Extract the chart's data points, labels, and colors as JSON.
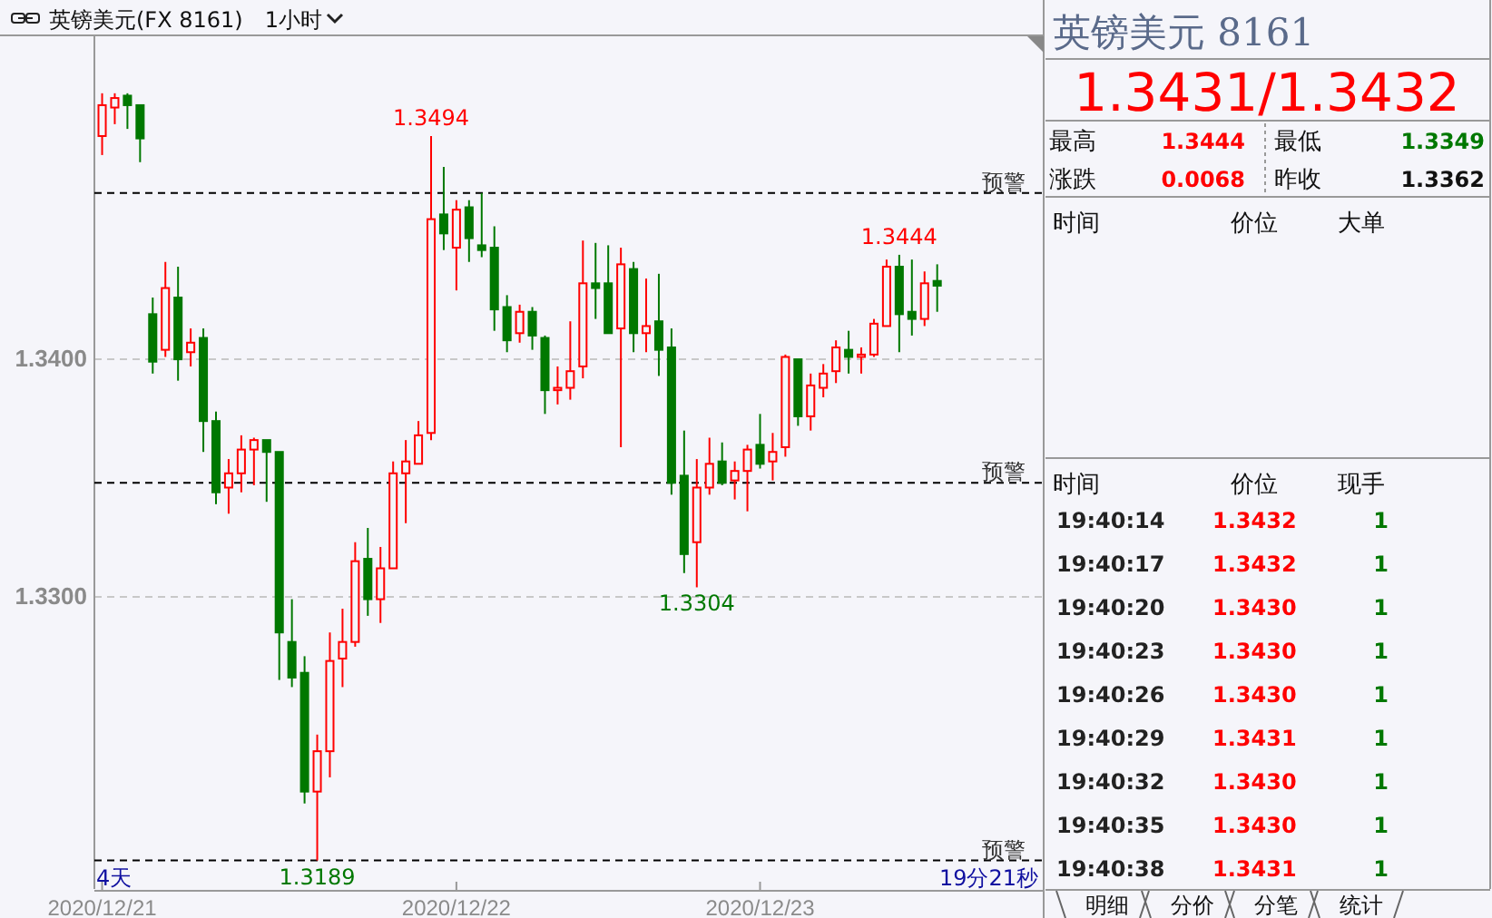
{
  "chart_data": [
    {
      "type": "candlestick",
      "title": "英镑美元(FX 8161)",
      "subtitle": "1小时",
      "categories": [
        "2020/12/21",
        null,
        null,
        null,
        null,
        null,
        null,
        null,
        null,
        null,
        null,
        null,
        null,
        null,
        null,
        null,
        null,
        null,
        null,
        null,
        null,
        null,
        null,
        null,
        null,
        null,
        null,
        null,
        "2020/12/22",
        null,
        null,
        null,
        null,
        null,
        null,
        null,
        null,
        null,
        null,
        null,
        null,
        null,
        null,
        null,
        null,
        null,
        null,
        null,
        null,
        null,
        null,
        null,
        "2020/12/23",
        null,
        null,
        null,
        null,
        null,
        null,
        null,
        null,
        null,
        null,
        null,
        null,
        null,
        null
      ],
      "ohlc": [
        [
          1.3494,
          1.3512,
          1.3486,
          1.3507
        ],
        [
          1.3506,
          1.3512,
          1.3499,
          1.351
        ],
        [
          1.3511,
          1.3512,
          1.3497,
          1.3507
        ],
        [
          1.3507,
          1.3507,
          1.3483,
          1.3493
        ],
        [
          1.3419,
          1.3426,
          1.3394,
          1.3399
        ],
        [
          1.3404,
          1.3441,
          1.3401,
          1.343
        ],
        [
          1.3426,
          1.3439,
          1.3391,
          1.34
        ],
        [
          1.3403,
          1.3413,
          1.3397,
          1.3407
        ],
        [
          1.3409,
          1.3413,
          1.3361,
          1.3374
        ],
        [
          1.3374,
          1.3378,
          1.3339,
          1.3344
        ],
        [
          1.3346,
          1.3358,
          1.3335,
          1.3352
        ],
        [
          1.3352,
          1.3368,
          1.3344,
          1.3362
        ],
        [
          1.3362,
          1.3367,
          1.3347,
          1.3366
        ],
        [
          1.3366,
          1.3366,
          1.334,
          1.3361
        ],
        [
          1.3361,
          1.3361,
          1.3265,
          1.3285
        ],
        [
          1.3281,
          1.3299,
          1.3262,
          1.3266
        ],
        [
          1.3268,
          1.3275,
          1.3213,
          1.3218
        ],
        [
          1.3218,
          1.3242,
          1.3189,
          1.3235
        ],
        [
          1.3235,
          1.3285,
          1.3224,
          1.3273
        ],
        [
          1.3274,
          1.3295,
          1.3262,
          1.3281
        ],
        [
          1.3281,
          1.3323,
          1.3279,
          1.3315
        ],
        [
          1.3316,
          1.3329,
          1.3292,
          1.3299
        ],
        [
          1.3299,
          1.3321,
          1.3289,
          1.3312
        ],
        [
          1.3312,
          1.3357,
          1.3312,
          1.3352
        ],
        [
          1.3352,
          1.3366,
          1.3331,
          1.3357
        ],
        [
          1.3356,
          1.3374,
          1.3356,
          1.3368
        ],
        [
          1.3369,
          1.3494,
          1.3366,
          1.3459
        ],
        [
          1.3461,
          1.3481,
          1.3446,
          1.3453
        ],
        [
          1.3447,
          1.3467,
          1.3429,
          1.3463
        ],
        [
          1.3464,
          1.3467,
          1.3441,
          1.3451
        ],
        [
          1.3448,
          1.347,
          1.3443,
          1.3446
        ],
        [
          1.3447,
          1.3456,
          1.3412,
          1.3421
        ],
        [
          1.3422,
          1.3427,
          1.3403,
          1.3408
        ],
        [
          1.3411,
          1.3423,
          1.3407,
          1.342
        ],
        [
          1.342,
          1.3422,
          1.3404,
          1.341
        ],
        [
          1.3409,
          1.341,
          1.3377,
          1.3387
        ],
        [
          1.3387,
          1.3397,
          1.3381,
          1.3388
        ],
        [
          1.3388,
          1.3416,
          1.3383,
          1.3395
        ],
        [
          1.3397,
          1.345,
          1.3392,
          1.3432
        ],
        [
          1.3432,
          1.3449,
          1.3417,
          1.343
        ],
        [
          1.3432,
          1.3448,
          1.3411,
          1.3411
        ],
        [
          1.3413,
          1.3447,
          1.3363,
          1.344
        ],
        [
          1.3438,
          1.3441,
          1.3403,
          1.3411
        ],
        [
          1.3411,
          1.3434,
          1.3403,
          1.3414
        ],
        [
          1.3416,
          1.3436,
          1.3393,
          1.3404
        ],
        [
          1.3405,
          1.3413,
          1.3343,
          1.3348
        ],
        [
          1.3351,
          1.337,
          1.331,
          1.3318
        ],
        [
          1.3323,
          1.3358,
          1.3304,
          1.3346
        ],
        [
          1.3346,
          1.3367,
          1.3343,
          1.3356
        ],
        [
          1.3357,
          1.3365,
          1.3347,
          1.3348
        ],
        [
          1.3349,
          1.3357,
          1.3341,
          1.3353
        ],
        [
          1.3353,
          1.3364,
          1.3336,
          1.3362
        ],
        [
          1.3364,
          1.3377,
          1.3354,
          1.3356
        ],
        [
          1.3357,
          1.3369,
          1.3349,
          1.3361
        ],
        [
          1.3363,
          1.3402,
          1.3359,
          1.3401
        ],
        [
          1.34,
          1.34,
          1.3372,
          1.3376
        ],
        [
          1.3376,
          1.3394,
          1.337,
          1.3389
        ],
        [
          1.3388,
          1.3398,
          1.3384,
          1.3394
        ],
        [
          1.3395,
          1.3408,
          1.339,
          1.3405
        ],
        [
          1.3404,
          1.3412,
          1.3394,
          1.3401
        ],
        [
          1.3401,
          1.3405,
          1.3394,
          1.3402
        ],
        [
          1.3402,
          1.3417,
          1.3401,
          1.3415
        ],
        [
          1.3414,
          1.3442,
          1.3414,
          1.3439
        ],
        [
          1.3439,
          1.3444,
          1.3403,
          1.3419
        ],
        [
          1.342,
          1.3442,
          1.341,
          1.3417
        ],
        [
          1.3417,
          1.3437,
          1.3414,
          1.3432
        ],
        [
          1.3433,
          1.344,
          1.342,
          1.3431
        ]
      ],
      "colors": [
        "#ff0000",
        "#ff0000",
        "#007800",
        "#007800",
        "#007800",
        "#ff0000",
        "#007800",
        "#ff0000",
        "#007800",
        "#007800",
        "#ff0000",
        "#ff0000",
        "#ff0000",
        "#007800",
        "#007800",
        "#007800",
        "#007800",
        "#ff0000",
        "#ff0000",
        "#ff0000",
        "#ff0000",
        "#007800",
        "#ff0000",
        "#ff0000",
        "#ff0000",
        "#ff0000",
        "#ff0000",
        "#007800",
        "#ff0000",
        "#007800",
        "#007800",
        "#007800",
        "#007800",
        "#ff0000",
        "#007800",
        "#007800",
        "#ff0000",
        "#ff0000",
        "#ff0000",
        "#007800",
        "#007800",
        "#ff0000",
        "#007800",
        "#ff0000",
        "#007800",
        "#007800",
        "#007800",
        "#ff0000",
        "#ff0000",
        "#007800",
        "#ff0000",
        "#ff0000",
        "#007800",
        "#ff0000",
        "#ff0000",
        "#007800",
        "#ff0000",
        "#ff0000",
        "#ff0000",
        "#007800",
        "#ff0000",
        "#ff0000",
        "#ff0000",
        "#007800",
        "#007800",
        "#ff0000",
        "#007800"
      ],
      "ylim": [
        1.3177,
        1.3536
      ],
      "yticks": [
        {
          "value": 1.34,
          "label": "1.3400"
        },
        {
          "value": 1.33,
          "label": "1.3300"
        }
      ],
      "grid": "y",
      "ref_lines": [
        {
          "axis": "y",
          "value": 1.347,
          "label": "预警",
          "color": "#000000",
          "line_style": "dashed"
        },
        {
          "axis": "y",
          "value": 1.3348,
          "label": "预警",
          "color": "#000000",
          "line_style": "dashed"
        },
        {
          "axis": "y",
          "value": 1.3189,
          "label": "预警",
          "color": "#000000",
          "line_style": "dashed"
        }
      ],
      "annotations": [
        {
          "text": "1.3494",
          "y": 1.3494
        },
        {
          "text": "1.3189",
          "y": 1.3189
        },
        {
          "text": "1.3304",
          "y": 1.3304
        },
        {
          "text": "1.3444",
          "y": 1.3444
        },
        "4天",
        "19分21秒"
      ]
    },
    {
      "type": "other",
      "title": "英镑美元 8161",
      "subtitle": "1.3431/1.3432",
      "annotations": [
        "最高",
        "1.3444",
        "最低",
        "1.3349",
        "涨跌",
        "0.0068",
        "昨收",
        "1.3362",
        "时间",
        "价位",
        "大单",
        "明细",
        "分价",
        "分笔",
        "统计"
      ]
    },
    {
      "type": "heatmap",
      "ylabel": "时间",
      "categories": [
        "价位",
        "现手"
      ],
      "y_categories": [
        "19:40:14",
        "19:40:17",
        "19:40:20",
        "19:40:23",
        "19:40:26",
        "19:40:29",
        "19:40:32",
        "19:40:35",
        "19:40:38"
      ],
      "cells": [
        [
          1.3432,
          1
        ],
        [
          1.3432,
          1
        ],
        [
          1.343,
          1
        ],
        [
          1.343,
          1
        ],
        [
          1.343,
          1
        ],
        [
          1.3431,
          1
        ],
        [
          1.343,
          1
        ],
        [
          1.343,
          1
        ],
        [
          1.3431,
          1
        ]
      ],
      "cell_labels": [
        [
          "1.3432",
          "1"
        ],
        [
          "1.3432",
          "1"
        ],
        [
          "1.3430",
          "1"
        ],
        [
          "1.3430",
          "1"
        ],
        [
          "1.3430",
          "1"
        ],
        [
          "1.3431",
          "1"
        ],
        [
          "1.3430",
          "1"
        ],
        [
          "1.3430",
          "1"
        ],
        [
          "1.3431",
          "1"
        ]
      ],
      "data_labels": true,
      "colors": [
        "#ff0000",
        "#007800"
      ]
    }
  ]
}
